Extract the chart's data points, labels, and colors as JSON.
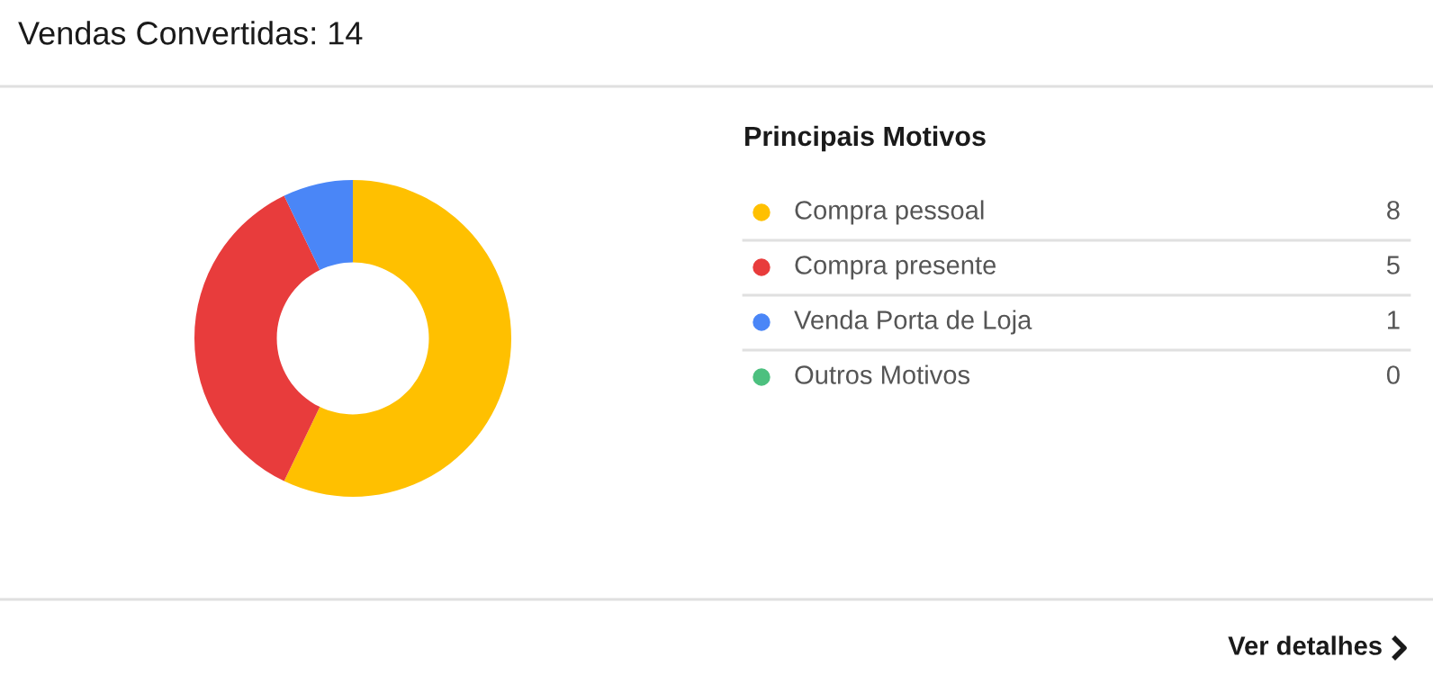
{
  "chart_data": {
    "type": "donut",
    "title": "Vendas Convertidas: 14",
    "legend_title": "Principais Motivos",
    "categories": [
      "Compra pessoal",
      "Compra presente",
      "Venda Porta de Loja",
      "Outros Motivos"
    ],
    "values": [
      8,
      5,
      1,
      0
    ],
    "colors": [
      "#ffc000",
      "#e83c3c",
      "#4a86f7",
      "#4cc07f"
    ],
    "value_labels": [
      "8",
      "5",
      "1",
      "0"
    ],
    "legend": "right",
    "annotations": [
      "Ver detalhes"
    ]
  }
}
